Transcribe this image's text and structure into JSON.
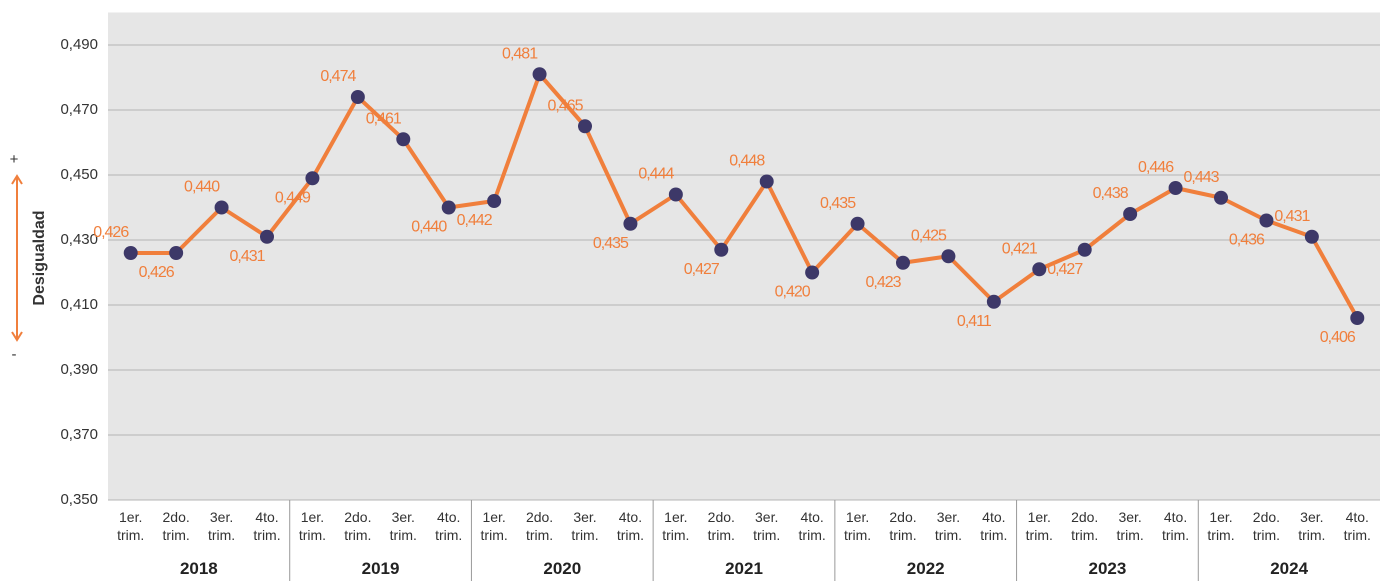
{
  "chart_data": {
    "type": "line",
    "y_label": "Desigualdad",
    "y_plus": "+",
    "y_minus": "-",
    "categories": [
      "1er. trim.",
      "2do. trim.",
      "3er. trim.",
      "4to. trim.",
      "1er. trim.",
      "2do. trim.",
      "3er. trim.",
      "4to. trim.",
      "1er. trim.",
      "2do. trim.",
      "3er. trim.",
      "4to. trim.",
      "1er. trim.",
      "2do. trim.",
      "3er. trim.",
      "4to. trim.",
      "1er. trim.",
      "2do. trim.",
      "3er. trim.",
      "4to. trim.",
      "1er. trim.",
      "2do. trim.",
      "3er. trim.",
      "4to. trim.",
      "1er. trim.",
      "2do. trim.",
      "3er. trim.",
      "4to. trim."
    ],
    "years": [
      "2018",
      "2019",
      "2020",
      "2021",
      "2022",
      "2023",
      "2024"
    ],
    "series": [
      {
        "name": "Desigualdad",
        "color": "#f07f3c",
        "marker_color": "#3d3868",
        "values": [
          0.426,
          0.426,
          0.44,
          0.431,
          0.449,
          0.474,
          0.461,
          0.44,
          0.442,
          0.481,
          0.465,
          0.435,
          0.444,
          0.427,
          0.448,
          0.42,
          0.435,
          0.423,
          0.425,
          0.411,
          0.421,
          0.427,
          0.438,
          0.446,
          0.443,
          0.436,
          0.431,
          0.406
        ],
        "value_labels": [
          "0,426",
          "0,426",
          "0,440",
          "0,431",
          "0,449",
          "0,474",
          "0,461",
          "0,440",
          "0,442",
          "0,481",
          "0,465",
          "0,435",
          "0,444",
          "0,427",
          "0,448",
          "0,420",
          "0,435",
          "0,423",
          "0,425",
          "0,411",
          "0,421",
          "0,427",
          "0,438",
          "0,446",
          "0,443",
          "0,436",
          "0,431",
          "0,406"
        ]
      }
    ],
    "ylim": [
      0.35,
      0.5
    ],
    "yticks": [
      {
        "value": 0.35,
        "label": "0,350"
      },
      {
        "value": 0.37,
        "label": "0,370"
      },
      {
        "value": 0.39,
        "label": "0,390"
      },
      {
        "value": 0.41,
        "label": "0,410"
      },
      {
        "value": 0.43,
        "label": "0,430"
      },
      {
        "value": 0.45,
        "label": "0,450"
      },
      {
        "value": 0.47,
        "label": "0,470"
      },
      {
        "value": 0.49,
        "label": "0,490"
      }
    ],
    "grid": true
  }
}
